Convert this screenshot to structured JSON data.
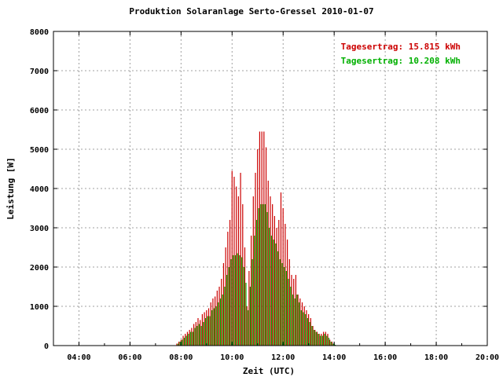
{
  "chart_data": {
    "type": "bar",
    "title": "Produktion Solaranlage Serto-Gressel 2010-01-07",
    "xlabel": "Zeit (UTC)",
    "ylabel": "Leistung [W]",
    "xlim_hours": [
      3.0,
      20.0
    ],
    "ylim": [
      0,
      8000
    ],
    "x_ticks": [
      "04:00",
      "06:00",
      "08:00",
      "10:00",
      "12:00",
      "14:00",
      "16:00",
      "18:00",
      "20:00"
    ],
    "y_ticks": [
      "0",
      "1000",
      "2000",
      "3000",
      "4000",
      "5000",
      "6000",
      "7000",
      "8000"
    ],
    "grid": true,
    "legend_position": "top-right",
    "series": [
      {
        "name": "Tagesertrag: 15.815 kWh",
        "color": "#cc0000"
      },
      {
        "name": "Tagesertrag: 10.208 kWh",
        "color": "#00b000"
      }
    ],
    "x_start_hours": 7.75,
    "x_step_hours": 0.0833,
    "red_values": [
      0,
      50,
      100,
      150,
      250,
      300,
      350,
      400,
      450,
      550,
      600,
      700,
      650,
      800,
      850,
      900,
      950,
      1100,
      1200,
      1250,
      1400,
      1500,
      1700,
      2100,
      2500,
      2900,
      3200,
      4450,
      4300,
      4050,
      3800,
      4400,
      3600,
      2500,
      1000,
      1900,
      2800,
      3800,
      4400,
      5000,
      5450,
      5450,
      5450,
      5050,
      4200,
      3800,
      3600,
      3300,
      3000,
      3200,
      3900,
      3500,
      3100,
      2700,
      2200,
      1800,
      1700,
      1800,
      1300,
      1200,
      1100,
      1000,
      900,
      800,
      700,
      500,
      400,
      350,
      300,
      300,
      350,
      350,
      300,
      150,
      100,
      50
    ],
    "green_values": [
      0,
      50,
      100,
      150,
      200,
      250,
      300,
      350,
      350,
      450,
      500,
      550,
      500,
      600,
      700,
      750,
      750,
      900,
      950,
      1000,
      1100,
      1200,
      1300,
      1500,
      1800,
      2000,
      2200,
      2300,
      2300,
      2350,
      2300,
      2250,
      2000,
      1600,
      900,
      1500,
      2200,
      2800,
      3200,
      3500,
      3600,
      3600,
      3600,
      3400,
      3000,
      2800,
      2700,
      2600,
      2400,
      2200,
      2100,
      2000,
      1900,
      1700,
      1500,
      1300,
      1200,
      1300,
      1100,
      900,
      850,
      800,
      700,
      600,
      500,
      400,
      350,
      300,
      250,
      250,
      300,
      250,
      200,
      100,
      50,
      20
    ]
  }
}
